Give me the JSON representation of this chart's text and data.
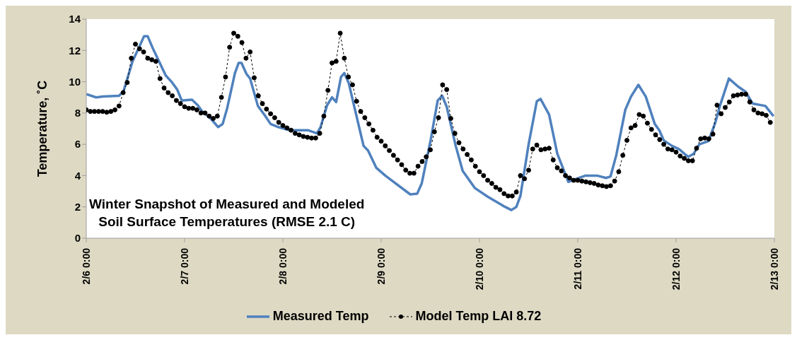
{
  "chart_data": {
    "type": "line",
    "title": "Winter Snapshot of Measured and Modeled\nSoil Surface Temperatures (RMSE 2.1 C)",
    "ylabel": "Temperature, ˚C",
    "xlim": [
      "--02-06T00:00",
      "--02-13T00:00"
    ],
    "xticks": [
      {
        "value": "--02-06T00:00",
        "label": "2/6 0:00"
      },
      {
        "value": "--02-07T00:00",
        "label": "2/7 0:00"
      },
      {
        "value": "--02-08T00:00",
        "label": "2/8 0:00"
      },
      {
        "value": "--02-09T00:00",
        "label": "2/9 0:00"
      },
      {
        "value": "--02-10T00:00",
        "label": "2/10 0:00"
      },
      {
        "value": "--02-11T00:00",
        "label": "2/11 0:00"
      },
      {
        "value": "--02-12T00:00",
        "label": "2/12 0:00"
      },
      {
        "value": "--02-13T00:00",
        "label": "2/13 0:00"
      }
    ],
    "ylim": [
      0,
      14
    ],
    "yticks": [
      0,
      2,
      4,
      6,
      8,
      10,
      12,
      14
    ],
    "grid": false,
    "legend": "bottom",
    "series": [
      {
        "name": "Measured Temp",
        "color": "#4f81bd",
        "marker": "none",
        "line_style": "solid",
        "x": [
          "--02-06T00:00",
          "--02-06T02:24",
          "--02-06T04:06",
          "--02-06T08:00",
          "--02-06T09:06",
          "--02-06T11:18",
          "--02-06T14:06",
          "--02-06T15:00",
          "--02-06T16:18",
          "--02-06T19:24",
          "--02-06T20:48",
          "--02-06T22:12",
          "--02-06T23:18",
          "--02-07T01:48",
          "--02-07T03:12",
          "--02-07T04:18",
          "--02-07T06:12",
          "--02-07T08:12",
          "--02-07T09:18",
          "--02-07T10:24",
          "--02-07T12:18",
          "--02-07T13:12",
          "--02-07T13:54",
          "--02-07T15:06",
          "--02-07T16:00",
          "--02-07T17:54",
          "--02-07T19:36",
          "--02-07T21:00",
          "--02-07T22:54",
          "--02-08T01:42",
          "--02-08T06:06",
          "--02-08T08:18",
          "--02-08T09:12",
          "--02-08T10:48",
          "--02-08T12:00",
          "--02-08T13:00",
          "--02-08T14:12",
          "--02-08T15:00",
          "--02-08T16:06",
          "--02-08T17:48",
          "--02-08T19:42",
          "--02-08T20:48",
          "--02-08T22:48",
          "--02-09T01:00",
          "--02-09T07:06",
          "--02-09T08:48",
          "--02-09T09:54",
          "--02-09T12:06",
          "--02-09T13:48",
          "--02-09T14:54",
          "--02-09T16:00",
          "--02-09T18:12",
          "--02-09T19:54",
          "--02-09T22:54",
          "--02-10T02:00",
          "--02-10T05:54",
          "--02-10T07:48",
          "--02-10T09:00",
          "--02-10T10:00",
          "--02-10T12:00",
          "--02-10T14:00",
          "--02-10T14:54",
          "--02-10T17:00",
          "--02-10T19:00",
          "--02-10T21:42",
          "--02-10T23:42",
          "--02-11T01:54",
          "--02-11T04:42",
          "--02-11T06:54",
          "--02-11T08:00",
          "--02-11T09:24",
          "--02-11T11:36",
          "--02-11T13:00",
          "--02-11T14:48",
          "--02-11T16:36",
          "--02-11T18:48",
          "--02-11T19:54",
          "--02-11T21:00",
          "--02-11T23:00",
          "--02-12T00:42",
          "--02-12T02:00",
          "--02-12T03:00",
          "--02-12T04:18",
          "--02-12T05:42",
          "--02-12T07:54",
          "--02-12T09:36",
          "--02-12T10:42",
          "--02-12T12:54",
          "--02-12T15:06",
          "--02-12T17:00",
          "--02-12T18:42",
          "--02-12T21:48",
          "--02-12T23:48"
        ],
        "values": [
          9.2,
          9.0,
          9.05,
          9.1,
          9.4,
          11.3,
          12.9,
          12.9,
          12.1,
          10.4,
          10.0,
          9.5,
          8.8,
          8.85,
          8.5,
          8.1,
          7.7,
          7.1,
          7.3,
          8.3,
          10.55,
          11.2,
          11.2,
          10.5,
          10.2,
          8.45,
          7.85,
          7.3,
          7.1,
          6.9,
          6.9,
          6.7,
          7.1,
          8.5,
          9.0,
          8.7,
          10.3,
          10.55,
          9.9,
          8.0,
          5.9,
          5.6,
          4.5,
          4.0,
          2.8,
          2.85,
          3.5,
          6.3,
          8.8,
          9.1,
          8.4,
          5.9,
          4.3,
          3.2,
          2.65,
          2.05,
          1.8,
          2.0,
          2.7,
          6.0,
          8.75,
          8.9,
          7.9,
          5.4,
          3.6,
          3.8,
          4.0,
          4.0,
          3.85,
          3.95,
          5.3,
          8.2,
          9.05,
          9.8,
          9.05,
          7.3,
          6.9,
          6.25,
          5.9,
          5.7,
          5.4,
          5.2,
          5.4,
          6.0,
          6.2,
          7.4,
          8.45,
          10.2,
          9.7,
          9.35,
          8.6,
          8.45,
          7.8
        ]
      },
      {
        "name": "Model Temp LAI 8.72",
        "color": "#000000",
        "marker": "circle",
        "line_style": "dashed",
        "x": [
          "--02-06T00:00",
          "--02-06T01:00",
          "--02-06T02:00",
          "--02-06T03:00",
          "--02-06T04:00",
          "--02-06T05:00",
          "--02-06T06:00",
          "--02-06T07:00",
          "--02-06T08:00",
          "--02-06T09:00",
          "--02-06T10:00",
          "--02-06T11:00",
          "--02-06T12:00",
          "--02-06T13:00",
          "--02-06T14:00",
          "--02-06T15:00",
          "--02-06T16:00",
          "--02-06T17:00",
          "--02-06T18:00",
          "--02-06T19:00",
          "--02-06T20:00",
          "--02-06T21:00",
          "--02-06T22:00",
          "--02-06T23:00",
          "--02-07T00:00",
          "--02-07T01:00",
          "--02-07T02:00",
          "--02-07T03:00",
          "--02-07T04:00",
          "--02-07T05:00",
          "--02-07T06:00",
          "--02-07T07:00",
          "--02-07T08:00",
          "--02-07T09:00",
          "--02-07T10:00",
          "--02-07T11:00",
          "--02-07T12:00",
          "--02-07T13:00",
          "--02-07T14:00",
          "--02-07T15:00",
          "--02-07T16:00",
          "--02-07T17:00",
          "--02-07T18:00",
          "--02-07T19:00",
          "--02-07T20:00",
          "--02-07T21:00",
          "--02-07T22:00",
          "--02-07T23:00",
          "--02-08T00:00",
          "--02-08T01:00",
          "--02-08T02:00",
          "--02-08T03:00",
          "--02-08T04:00",
          "--02-08T05:00",
          "--02-08T06:00",
          "--02-08T07:00",
          "--02-08T08:00",
          "--02-08T09:00",
          "--02-08T10:00",
          "--02-08T11:00",
          "--02-08T12:00",
          "--02-08T13:00",
          "--02-08T14:00",
          "--02-08T15:00",
          "--02-08T16:00",
          "--02-08T17:00",
          "--02-08T18:00",
          "--02-08T19:00",
          "--02-08T20:00",
          "--02-08T21:00",
          "--02-08T22:00",
          "--02-08T23:00",
          "--02-09T00:00",
          "--02-09T01:00",
          "--02-09T02:00",
          "--02-09T03:00",
          "--02-09T04:00",
          "--02-09T05:00",
          "--02-09T06:00",
          "--02-09T07:00",
          "--02-09T08:00",
          "--02-09T09:00",
          "--02-09T10:00",
          "--02-09T11:00",
          "--02-09T12:00",
          "--02-09T13:00",
          "--02-09T14:00",
          "--02-09T15:00",
          "--02-09T16:00",
          "--02-09T17:00",
          "--02-09T18:00",
          "--02-09T19:00",
          "--02-09T20:00",
          "--02-09T21:00",
          "--02-09T22:00",
          "--02-09T23:00",
          "--02-10T00:00",
          "--02-10T01:00",
          "--02-10T02:00",
          "--02-10T03:00",
          "--02-10T04:00",
          "--02-10T05:00",
          "--02-10T06:00",
          "--02-10T07:00",
          "--02-10T08:00",
          "--02-10T09:00",
          "--02-10T10:00",
          "--02-10T11:00",
          "--02-10T12:00",
          "--02-10T13:00",
          "--02-10T14:00",
          "--02-10T15:00",
          "--02-10T16:00",
          "--02-10T17:00",
          "--02-10T18:00",
          "--02-10T19:00",
          "--02-10T20:00",
          "--02-10T21:00",
          "--02-10T22:00",
          "--02-10T23:00",
          "--02-11T00:00",
          "--02-11T01:00",
          "--02-11T02:00",
          "--02-11T03:00",
          "--02-11T04:00",
          "--02-11T05:00",
          "--02-11T06:00",
          "--02-11T07:00",
          "--02-11T08:00",
          "--02-11T09:00",
          "--02-11T10:00",
          "--02-11T11:00",
          "--02-11T12:00",
          "--02-11T13:00",
          "--02-11T14:00",
          "--02-11T15:00",
          "--02-11T16:00",
          "--02-11T17:00",
          "--02-11T18:00",
          "--02-11T19:00",
          "--02-11T20:00",
          "--02-11T21:00",
          "--02-11T22:00",
          "--02-11T23:00",
          "--02-12T00:00",
          "--02-12T01:00",
          "--02-12T02:00",
          "--02-12T03:00",
          "--02-12T04:00",
          "--02-12T05:00",
          "--02-12T06:00",
          "--02-12T07:00",
          "--02-12T08:00",
          "--02-12T09:00",
          "--02-12T10:00",
          "--02-12T11:00",
          "--02-12T12:00",
          "--02-12T13:00",
          "--02-12T14:00",
          "--02-12T15:00",
          "--02-12T16:00",
          "--02-12T17:00",
          "--02-12T18:00",
          "--02-12T19:00",
          "--02-12T20:00",
          "--02-12T21:00",
          "--02-12T22:00",
          "--02-12T23:00"
        ],
        "values": [
          8.2,
          8.1,
          8.1,
          8.1,
          8.1,
          8.05,
          8.1,
          8.2,
          8.45,
          9.3,
          9.95,
          11.5,
          12.4,
          12.1,
          11.9,
          11.5,
          11.4,
          11.3,
          10.2,
          9.6,
          9.3,
          9.1,
          8.8,
          8.6,
          8.4,
          8.3,
          8.3,
          8.2,
          8.0,
          8.0,
          7.8,
          7.65,
          7.8,
          9.0,
          10.3,
          12.2,
          13.1,
          12.9,
          12.5,
          11.5,
          11.9,
          10.25,
          9.1,
          8.6,
          8.25,
          7.95,
          7.7,
          7.4,
          7.2,
          7.05,
          6.9,
          6.7,
          6.6,
          6.5,
          6.45,
          6.4,
          6.4,
          6.7,
          7.8,
          9.45,
          11.2,
          11.3,
          13.1,
          11.5,
          10.3,
          9.8,
          8.75,
          8.1,
          7.7,
          7.3,
          6.9,
          6.45,
          6.2,
          5.9,
          5.6,
          5.3,
          5.0,
          4.7,
          4.35,
          4.15,
          4.15,
          4.6,
          4.9,
          5.2,
          5.65,
          6.8,
          7.7,
          9.8,
          9.5,
          7.65,
          6.7,
          6.1,
          5.7,
          5.35,
          5.0,
          4.6,
          4.25,
          4.0,
          3.7,
          3.5,
          3.25,
          3.1,
          2.85,
          2.7,
          2.7,
          2.95,
          4.0,
          3.8,
          4.35,
          5.7,
          5.95,
          5.65,
          5.7,
          5.75,
          5.0,
          4.5,
          4.3,
          4.0,
          3.85,
          3.7,
          3.7,
          3.65,
          3.6,
          3.55,
          3.5,
          3.4,
          3.35,
          3.3,
          3.35,
          3.65,
          4.25,
          5.3,
          6.25,
          7.05,
          7.2,
          7.9,
          7.8,
          7.35,
          6.95,
          6.6,
          6.3,
          6.0,
          5.7,
          5.65,
          5.5,
          5.25,
          5.1,
          4.95,
          4.95,
          5.75,
          6.35,
          6.4,
          6.35,
          6.65,
          8.5,
          7.95,
          8.35,
          8.7,
          9.1,
          9.15,
          9.2,
          9.2,
          8.7,
          8.2,
          8.0,
          7.95,
          7.85,
          7.4
        ]
      }
    ]
  }
}
